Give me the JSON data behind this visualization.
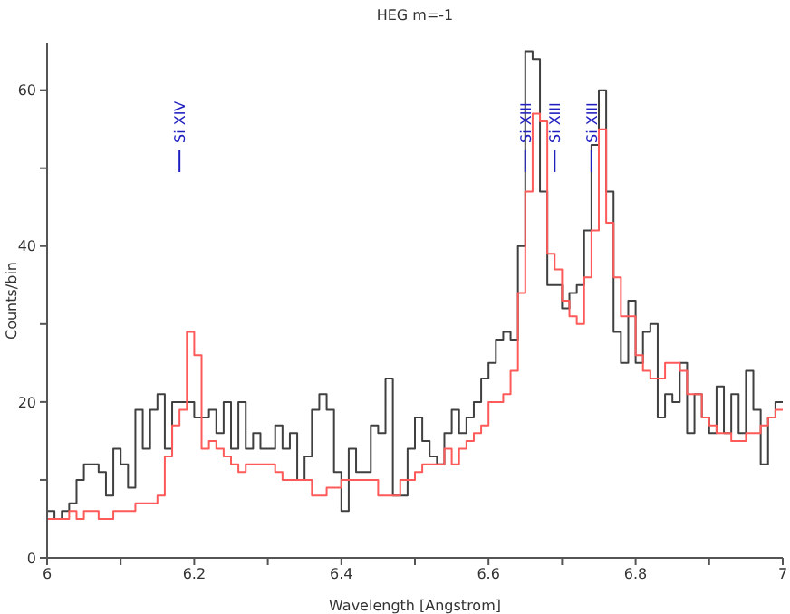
{
  "chart_data": {
    "type": "histogram",
    "title": "HEG m=-1",
    "xlabel": "Wavelength [Angstrom]",
    "ylabel": "Counts/bin",
    "bins": [
      6.0,
      6.01,
      6.02,
      6.03,
      6.04,
      6.05,
      6.06,
      6.07,
      6.08,
      6.09,
      6.1,
      6.11,
      6.12,
      6.13,
      6.14,
      6.15,
      6.16,
      6.17,
      6.18,
      6.19,
      6.2,
      6.21,
      6.22,
      6.23,
      6.24,
      6.25,
      6.26,
      6.27,
      6.28,
      6.29,
      6.3,
      6.31,
      6.32,
      6.33,
      6.34,
      6.35,
      6.36,
      6.37,
      6.38,
      6.39,
      6.4,
      6.41,
      6.42,
      6.43,
      6.44,
      6.45,
      6.46,
      6.47,
      6.48,
      6.49,
      6.5,
      6.51,
      6.52,
      6.53,
      6.54,
      6.55,
      6.56,
      6.57,
      6.58,
      6.59,
      6.6,
      6.61,
      6.62,
      6.63,
      6.64,
      6.65,
      6.66,
      6.67,
      6.68,
      6.69,
      6.7,
      6.71,
      6.72,
      6.73,
      6.74,
      6.75,
      6.76,
      6.77,
      6.78,
      6.79,
      6.8,
      6.81,
      6.82,
      6.83,
      6.84,
      6.85,
      6.86,
      6.87,
      6.88,
      6.89,
      6.9,
      6.91,
      6.92,
      6.93,
      6.94,
      6.95,
      6.96,
      6.97,
      6.98,
      6.99,
      7.0
    ],
    "series": [
      {
        "color": "#404040",
        "values": [
          6,
          5,
          6,
          7,
          10,
          12,
          12,
          11,
          8,
          14,
          12,
          9,
          19,
          14,
          19,
          21,
          14,
          20,
          20,
          20,
          18,
          18,
          19,
          16,
          20,
          14,
          20,
          14,
          16,
          14,
          14,
          17,
          14,
          16,
          10,
          13,
          19,
          21,
          19,
          11,
          6,
          14,
          11,
          11,
          17,
          16,
          23,
          8,
          8,
          14,
          18,
          15,
          13,
          12,
          16,
          19,
          16,
          18,
          20,
          23,
          25,
          28,
          29,
          28,
          40,
          65,
          64,
          47,
          35,
          35,
          32,
          34,
          35,
          42,
          53,
          60,
          47,
          29,
          25,
          33,
          25,
          29,
          30,
          18,
          21,
          20,
          25,
          16,
          21,
          18,
          16,
          22,
          16,
          21,
          16,
          24,
          19,
          12,
          18,
          20
        ]
      },
      {
        "color": "#ff5a5a",
        "values": [
          5,
          5,
          5,
          6,
          5,
          6,
          6,
          5,
          5,
          6,
          6,
          6,
          7,
          7,
          7,
          8,
          13,
          17,
          19,
          29,
          26,
          14,
          15,
          14,
          13,
          12,
          11,
          12,
          12,
          12,
          12,
          11,
          10,
          10,
          10,
          10,
          8,
          8,
          9,
          9,
          10,
          10,
          10,
          10,
          10,
          8,
          8,
          8,
          10,
          10,
          11,
          12,
          12,
          12,
          14,
          12,
          14,
          15,
          16,
          17,
          20,
          20,
          21,
          24,
          34,
          47,
          57,
          56,
          39,
          37,
          33,
          31,
          30,
          36,
          42,
          55,
          43,
          36,
          31,
          31,
          26,
          24,
          23,
          23,
          25,
          25,
          24,
          21,
          21,
          18,
          17,
          16,
          16,
          15,
          15,
          16,
          16,
          17,
          18,
          19
        ]
      }
    ],
    "xlim": [
      6,
      7
    ],
    "xticks": [
      6,
      {
        "value": 6.1,
        "label": null
      },
      6.2,
      {
        "value": 6.3,
        "label": null
      },
      6.4,
      {
        "value": 6.5,
        "label": null
      },
      6.6,
      {
        "value": 6.7,
        "label": null
      },
      6.8,
      {
        "value": 6.9,
        "label": null
      },
      7
    ],
    "ylim": [
      0,
      66
    ],
    "yticks": [
      0,
      {
        "value": 10,
        "label": null
      },
      20,
      {
        "value": 30,
        "label": null
      },
      40,
      {
        "value": 50,
        "label": null
      },
      60
    ],
    "annotations": [
      {
        "text": "Si XIV",
        "x": 6.18
      },
      {
        "text": "Si XIII",
        "x": 6.65
      },
      {
        "text": "Si XIII",
        "x": 6.69
      },
      {
        "text": "Si XIII",
        "x": 6.74
      }
    ]
  }
}
